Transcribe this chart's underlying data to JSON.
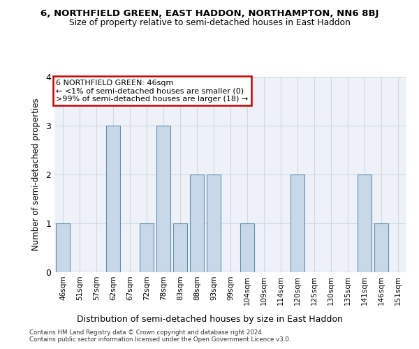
{
  "title": "6, NORTHFIELD GREEN, EAST HADDON, NORTHAMPTON, NN6 8BJ",
  "subtitle": "Size of property relative to semi-detached houses in East Haddon",
  "xlabel": "Distribution of semi-detached houses by size in East Haddon",
  "ylabel": "Number of semi-detached properties",
  "categories": [
    "46sqm",
    "51sqm",
    "57sqm",
    "62sqm",
    "67sqm",
    "72sqm",
    "78sqm",
    "83sqm",
    "88sqm",
    "93sqm",
    "99sqm",
    "104sqm",
    "109sqm",
    "114sqm",
    "120sqm",
    "125sqm",
    "130sqm",
    "135sqm",
    "141sqm",
    "146sqm",
    "151sqm"
  ],
  "values": [
    1,
    0,
    0,
    3,
    0,
    1,
    3,
    1,
    2,
    2,
    0,
    1,
    0,
    0,
    2,
    0,
    0,
    0,
    2,
    1,
    0
  ],
  "highlight_index": 0,
  "bar_color": "#c8d8e8",
  "bar_edge_color": "#6090b0",
  "grid_color": "#d0d8e0",
  "bg_color": "#eef2f8",
  "fig_color": "#ffffff",
  "annotation_text": "6 NORTHFIELD GREEN: 46sqm\n← <1% of semi-detached houses are smaller (0)\n>99% of semi-detached houses are larger (18) →",
  "annotation_box_color": "#ffffff",
  "annotation_box_edge": "#cc0000",
  "footer_line1": "Contains HM Land Registry data © Crown copyright and database right 2024.",
  "footer_line2": "Contains public sector information licensed under the Open Government Licence v3.0.",
  "ylim": [
    0,
    4
  ],
  "yticks": [
    0,
    1,
    2,
    3,
    4
  ]
}
